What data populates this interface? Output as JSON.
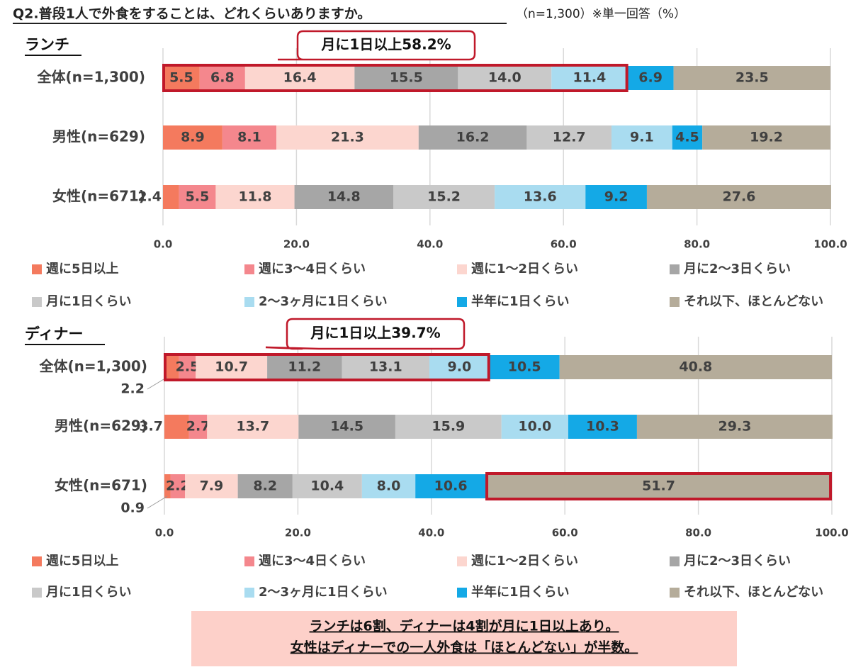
{
  "title": "Q2.普段1人で外食をすることは、どれくらいありますか。",
  "note": "（n=1,300）※単一回答（%）",
  "chart_data": [
    {
      "type": "bar",
      "orientation": "horizontal",
      "stacked": true,
      "title": "ランチ",
      "callout": "月に1日以上58.2%",
      "categories": [
        "全体(n=1,300)",
        "男性(n=629)",
        "女性(n=671)"
      ],
      "xlim": [
        0,
        100
      ],
      "xticks": [
        {
          "value": 0,
          "label": "0.0"
        },
        {
          "value": 20,
          "label": "20.0"
        },
        {
          "value": 40,
          "label": "40.0"
        },
        {
          "value": 60,
          "label": "60.0"
        },
        {
          "value": 80,
          "label": "80.0"
        },
        {
          "value": 100,
          "label": "100.0"
        }
      ],
      "grid": true,
      "series": [
        {
          "name": "週に5日以上",
          "color": "#f47a5e",
          "values": [
            5.5,
            8.9,
            2.4
          ],
          "value_labels": [
            "5.5",
            "8.9",
            "2.4"
          ]
        },
        {
          "name": "週に3～4日くらい",
          "color": "#f4878d",
          "values": [
            6.8,
            8.1,
            5.5
          ],
          "value_labels": [
            "6.8",
            "8.1",
            "5.5"
          ]
        },
        {
          "name": "週に1～2日くらい",
          "color": "#fcd6cf",
          "values": [
            16.4,
            21.3,
            11.8
          ],
          "value_labels": [
            "16.4",
            "21.3",
            "11.8"
          ]
        },
        {
          "name": "月に2～3日くらい",
          "color": "#a6a6a6",
          "values": [
            15.5,
            16.2,
            14.8
          ],
          "value_labels": [
            "15.5",
            "16.2",
            "14.8"
          ]
        },
        {
          "name": "月に1日くらい",
          "color": "#c9c9c9",
          "values": [
            14.0,
            12.7,
            15.2
          ],
          "value_labels": [
            "14.0",
            "12.7",
            "15.2"
          ]
        },
        {
          "name": "2～3ヶ月に1日くらい",
          "color": "#a9dcf0",
          "values": [
            11.4,
            9.1,
            13.6
          ],
          "value_labels": [
            "11.4",
            "9.1",
            "13.6"
          ]
        },
        {
          "name": "半年に1日くらい",
          "color": "#14a9e6",
          "values": [
            6.9,
            4.5,
            9.2
          ],
          "value_labels": [
            "6.9",
            "4.5",
            "9.2"
          ]
        },
        {
          "name": "それ以下、ほとんどない",
          "color": "#b5ac9a",
          "values": [
            23.5,
            19.2,
            27.6
          ],
          "value_labels": [
            "23.5",
            "19.2",
            "27.6"
          ]
        }
      ]
    },
    {
      "type": "bar",
      "orientation": "horizontal",
      "stacked": true,
      "title": "ディナー",
      "callout": "月に1日以上39.7%",
      "categories": [
        "全体(n=1,300)",
        "男性(n=629)",
        "女性(n=671)"
      ],
      "xlim": [
        0,
        100
      ],
      "xticks": [
        {
          "value": 0,
          "label": "0.0"
        },
        {
          "value": 20,
          "label": "20.0"
        },
        {
          "value": 40,
          "label": "40.0"
        },
        {
          "value": 60,
          "label": "60.0"
        },
        {
          "value": 80,
          "label": "80.0"
        },
        {
          "value": 100,
          "label": "100.0"
        }
      ],
      "grid": true,
      "series": [
        {
          "name": "週に5日以上",
          "color": "#f47a5e",
          "values": [
            2.2,
            3.7,
            0.9
          ],
          "value_labels": [
            "2.2",
            "3.7",
            "0.9"
          ]
        },
        {
          "name": "週に3～4日くらい",
          "color": "#f4878d",
          "values": [
            2.5,
            2.7,
            2.2
          ],
          "value_labels": [
            "2.5",
            "2.7",
            "2.2"
          ]
        },
        {
          "name": "週に1～2日くらい",
          "color": "#fcd6cf",
          "values": [
            10.7,
            13.7,
            7.9
          ],
          "value_labels": [
            "10.7",
            "13.7",
            "7.9"
          ]
        },
        {
          "name": "月に2～3日くらい",
          "color": "#a6a6a6",
          "values": [
            11.2,
            14.5,
            8.2
          ],
          "value_labels": [
            "11.2",
            "14.5",
            "8.2"
          ]
        },
        {
          "name": "月に1日くらい",
          "color": "#c9c9c9",
          "values": [
            13.1,
            15.9,
            10.4
          ],
          "value_labels": [
            "13.1",
            "15.9",
            "10.4"
          ]
        },
        {
          "name": "2～3ヶ月に1日くらい",
          "color": "#a9dcf0",
          "values": [
            9.0,
            10.0,
            8.0
          ],
          "value_labels": [
            "9.0",
            "10.0",
            "8.0"
          ]
        },
        {
          "name": "半年に1日くらい",
          "color": "#14a9e6",
          "values": [
            10.5,
            10.3,
            10.6
          ],
          "value_labels": [
            "10.5",
            "10.3",
            "10.6"
          ]
        },
        {
          "name": "それ以下、ほとんどない",
          "color": "#b5ac9a",
          "values": [
            40.8,
            29.3,
            51.7
          ],
          "value_labels": [
            "40.8",
            "29.3",
            "51.7"
          ]
        }
      ]
    }
  ],
  "summary": [
    "ランチは6割、ディナーは4割が月に1日以上あり。",
    "女性はディナーでの一人外食は「ほとんどない」が半数。"
  ]
}
